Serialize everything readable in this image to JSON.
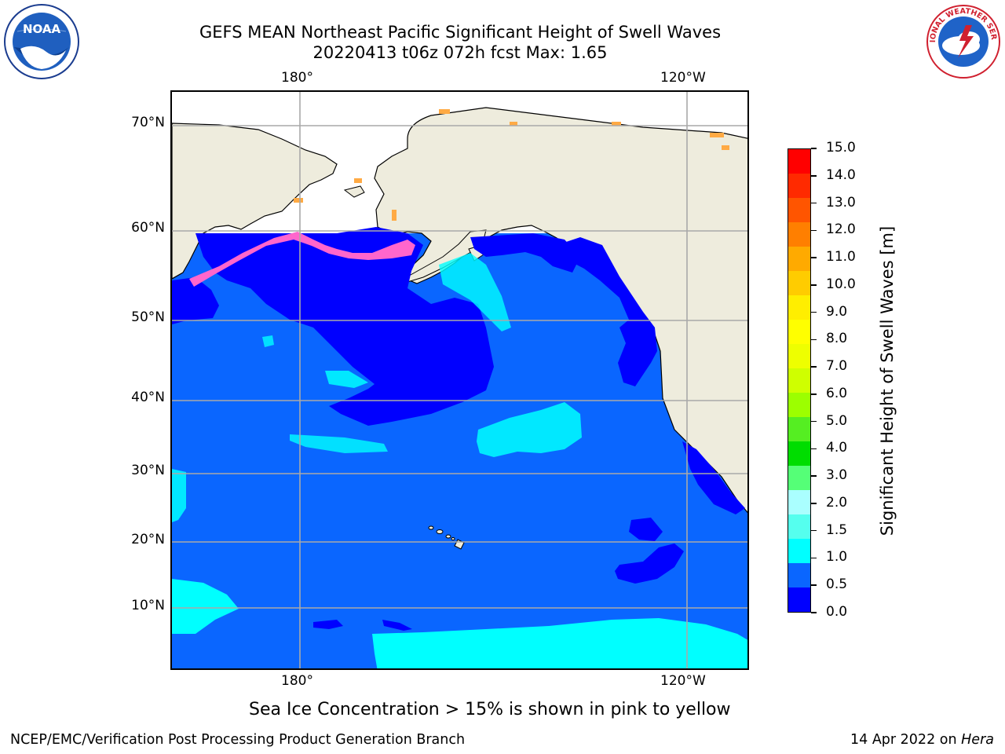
{
  "title": {
    "line1": "GEFS MEAN Northeast Pacific Significant Height of Swell Waves",
    "line2": "20220413 t06z 072h fcst   Max: 1.65"
  },
  "map": {
    "longitude_labels": [
      "180°",
      "120°W"
    ],
    "latitude_labels": [
      "70°N",
      "60°N",
      "50°N",
      "40°N",
      "30°N",
      "20°N",
      "10°N"
    ],
    "land_color": "#eeecdd",
    "ice_free_region_color": "#ffffff",
    "dominant_field_color": "#0a66ff"
  },
  "colorbar": {
    "label": "Significant Height of Swell Waves [m]",
    "ticks": [
      "15.0",
      "14.0",
      "13.0",
      "12.0",
      "11.0",
      "10.0",
      "9.0",
      "8.0",
      "7.0",
      "6.0",
      "5.0",
      "4.0",
      "3.0",
      "2.0",
      "1.5",
      "1.0",
      "0.5",
      "0.0"
    ],
    "colors_top_to_bottom": [
      "#ff0000",
      "#ff2a00",
      "#ff5500",
      "#ff7f00",
      "#ffaa00",
      "#ffcc00",
      "#ffee00",
      "#ffff00",
      "#eeff00",
      "#cfff00",
      "#9cff00",
      "#55ee22",
      "#00dd00",
      "#55ff77",
      "#aaffff",
      "#55ffee",
      "#00ffff",
      "#0a66ff",
      "#0000ff"
    ]
  },
  "logos": {
    "left_text": "NOAA",
    "right_text": "NATIONAL WEATHER SERVICE"
  },
  "note": "Sea Ice Concentration > 15% is shown in pink to yellow",
  "footer": {
    "left": "NCEP/EMC/Verification Post Processing Product Generation Branch",
    "right_date": "14 Apr 2022 on ",
    "right_host": "Hera"
  }
}
